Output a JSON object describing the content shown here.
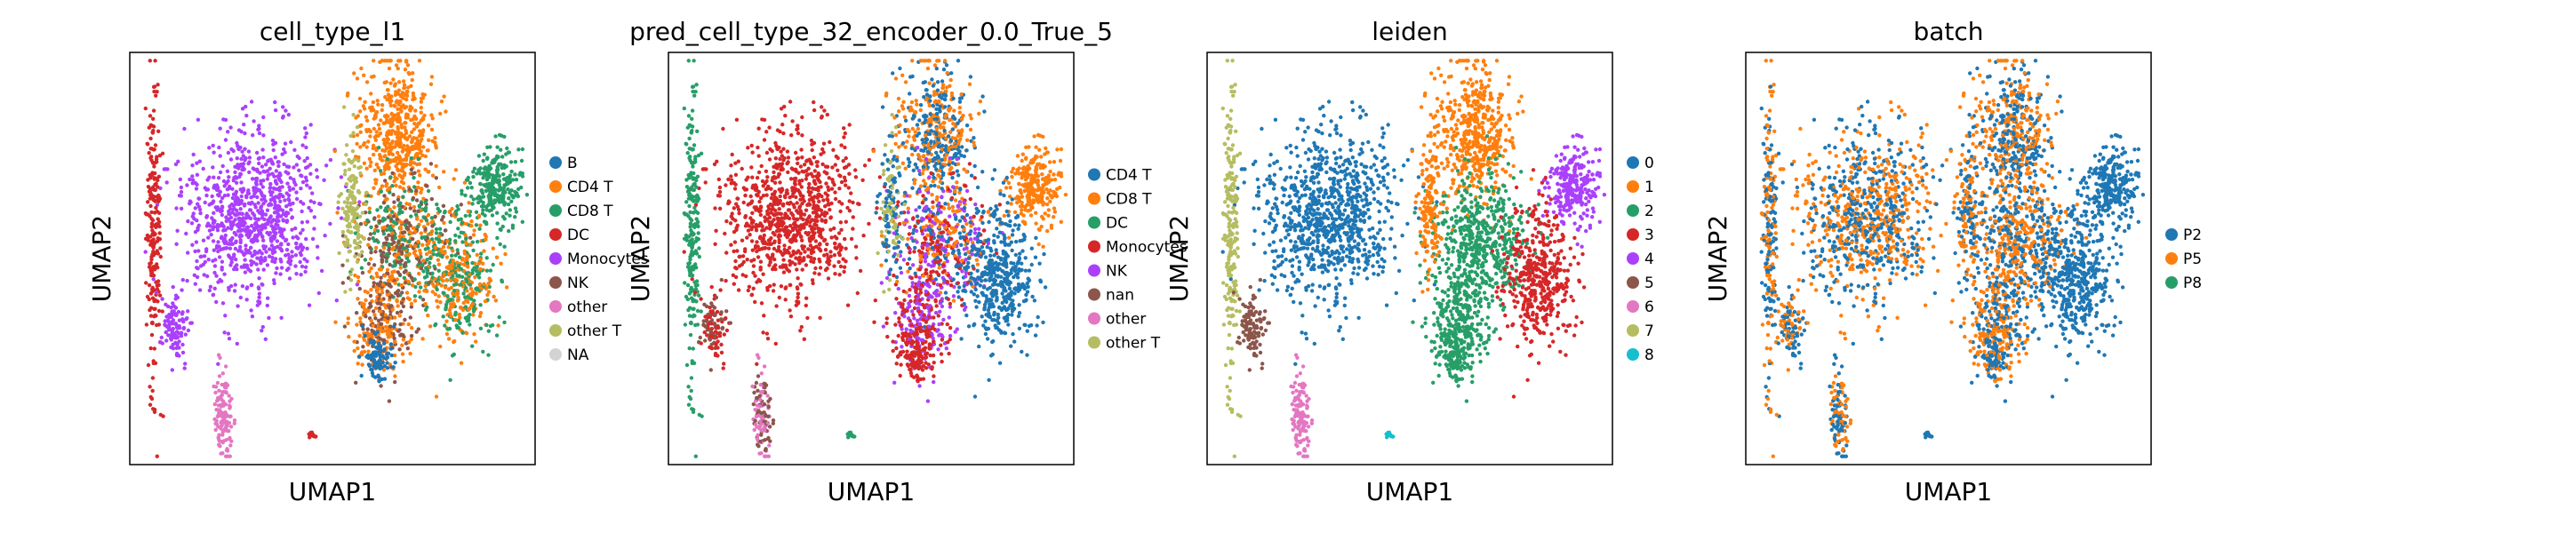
{
  "chart_data": [
    {
      "type": "scatter",
      "title": "cell_type_l1",
      "xlabel": "UMAP1",
      "ylabel": "UMAP2",
      "grid": false,
      "legend_placement": "right",
      "categories": [
        "B",
        "CD4 T",
        "CD8 T",
        "DC",
        "Monocytes",
        "NK",
        "other",
        "other T",
        "NA"
      ],
      "colors": [
        "#1f77b4",
        "#ff7f0e",
        "#279e68",
        "#d62728",
        "#aa40fc",
        "#8c564b",
        "#e377c2",
        "#b5bd61",
        "#d3d3d3"
      ]
    },
    {
      "type": "scatter",
      "title": "pred_cell_type_32_encoder_0.0_True_5",
      "xlabel": "UMAP1",
      "ylabel": "UMAP2",
      "grid": false,
      "legend_placement": "right",
      "categories": [
        "CD4 T",
        "CD8 T",
        "DC",
        "Monocytes",
        "NK",
        "nan",
        "other",
        "other T"
      ],
      "colors": [
        "#1f77b4",
        "#ff7f0e",
        "#279e68",
        "#d62728",
        "#aa40fc",
        "#8c564b",
        "#e377c2",
        "#b5bd61"
      ]
    },
    {
      "type": "scatter",
      "title": "leiden",
      "xlabel": "UMAP1",
      "ylabel": "UMAP2",
      "grid": false,
      "legend_placement": "right",
      "categories": [
        "0",
        "1",
        "2",
        "3",
        "4",
        "5",
        "6",
        "7",
        "8"
      ],
      "colors": [
        "#1f77b4",
        "#ff7f0e",
        "#279e68",
        "#d62728",
        "#aa40fc",
        "#8c564b",
        "#e377c2",
        "#b5bd61",
        "#17becf"
      ]
    },
    {
      "type": "scatter",
      "title": "batch",
      "xlabel": "UMAP1",
      "ylabel": "UMAP2",
      "grid": false,
      "legend_placement": "right",
      "categories": [
        "P2",
        "P5",
        "P8"
      ],
      "colors": [
        "#1f77b4",
        "#ff7f0e",
        "#279e68"
      ]
    }
  ]
}
